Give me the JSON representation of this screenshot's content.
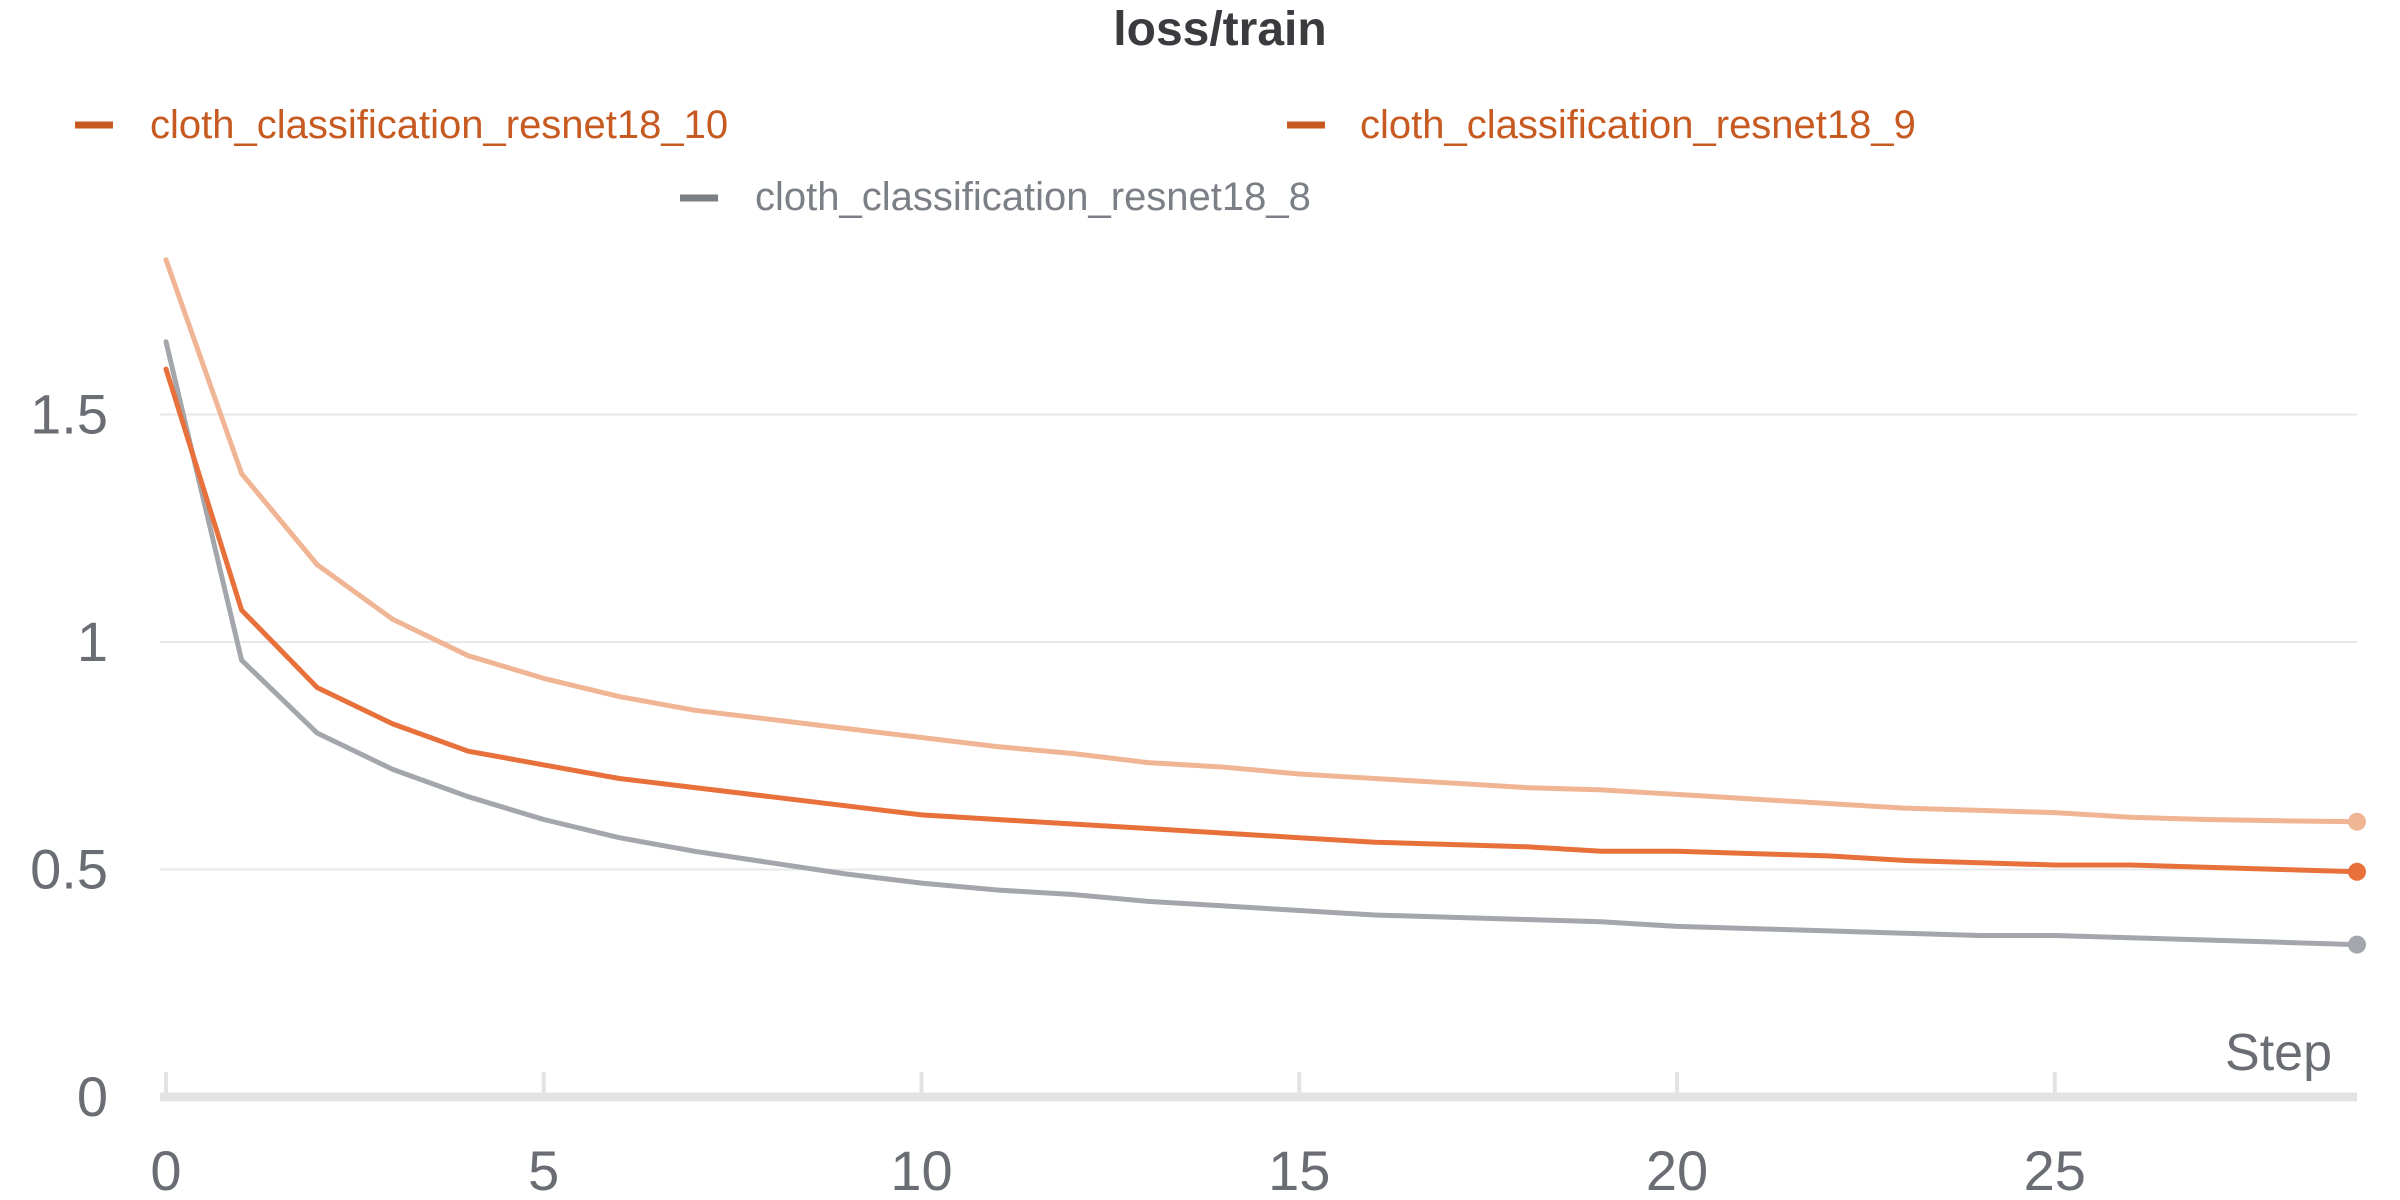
{
  "chart_data": {
    "type": "line",
    "title": "loss/train",
    "xlabel": "Step",
    "ylabel": "",
    "xlim": [
      0,
      29
    ],
    "ylim": [
      0,
      1.85
    ],
    "x_ticks": [
      0,
      5,
      10,
      15,
      20,
      25
    ],
    "y_ticks": [
      0,
      0.5,
      1,
      1.5
    ],
    "y_tick_labels": [
      "0",
      "0.5",
      "1",
      "1.5"
    ],
    "grid": true,
    "legend_position": "top",
    "x": [
      0,
      1,
      2,
      3,
      4,
      5,
      6,
      7,
      8,
      9,
      10,
      11,
      12,
      13,
      14,
      15,
      16,
      17,
      18,
      19,
      20,
      21,
      22,
      23,
      24,
      25,
      26,
      27,
      28,
      29
    ],
    "series": [
      {
        "name": "cloth_classification_resnet18_10",
        "color": "#e8703a",
        "legend_color": "#c75a21",
        "values": [
          1.6,
          1.07,
          0.9,
          0.82,
          0.76,
          0.73,
          0.7,
          0.68,
          0.66,
          0.64,
          0.62,
          0.61,
          0.6,
          0.59,
          0.58,
          0.57,
          0.56,
          0.555,
          0.55,
          0.54,
          0.54,
          0.535,
          0.53,
          0.52,
          0.515,
          0.51,
          0.51,
          0.505,
          0.5,
          0.495
        ]
      },
      {
        "name": "cloth_classification_resnet18_9",
        "color": "#f0b594",
        "legend_color": "#c75a21",
        "values": [
          1.84,
          1.37,
          1.17,
          1.05,
          0.97,
          0.92,
          0.88,
          0.85,
          0.83,
          0.81,
          0.79,
          0.77,
          0.755,
          0.735,
          0.725,
          0.71,
          0.7,
          0.69,
          0.68,
          0.675,
          0.665,
          0.655,
          0.645,
          0.635,
          0.63,
          0.625,
          0.615,
          0.61,
          0.607,
          0.605
        ]
      },
      {
        "name": "cloth_classification_resnet18_8",
        "color": "#a3a7ab",
        "legend_color": "#7b7f86",
        "values": [
          1.66,
          0.96,
          0.8,
          0.72,
          0.66,
          0.61,
          0.57,
          0.54,
          0.515,
          0.49,
          0.47,
          0.455,
          0.445,
          0.43,
          0.42,
          0.41,
          0.4,
          0.395,
          0.39,
          0.385,
          0.375,
          0.37,
          0.365,
          0.36,
          0.355,
          0.355,
          0.35,
          0.345,
          0.34,
          0.335
        ]
      }
    ]
  }
}
